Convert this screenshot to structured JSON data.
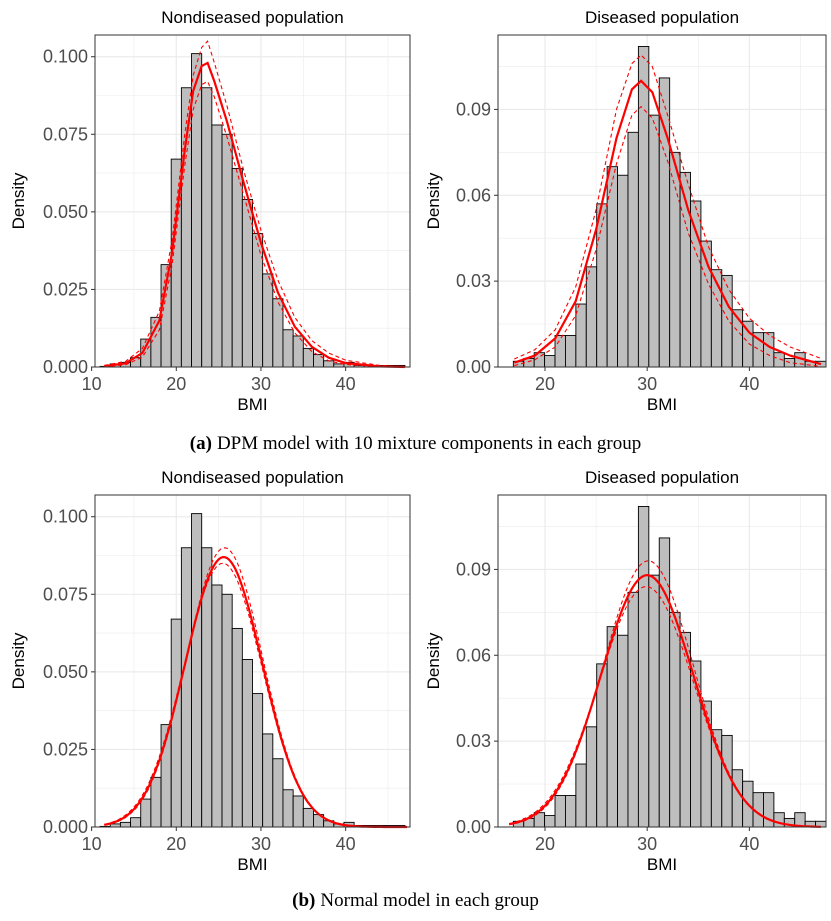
{
  "captions": {
    "a": {
      "tag": "(a)",
      "text": "DPM model with 10 mixture components in each group"
    },
    "b": {
      "tag": "(b)",
      "text": "Normal model in each group"
    }
  },
  "colors": {
    "bar_fill": "#bebebe",
    "bar_stroke": "#000000",
    "fit": "#ff0000",
    "grid": "#ebebeb"
  },
  "chart_data": [
    {
      "panel": "a-left",
      "type": "bar",
      "title": "Nondiseased population",
      "xlabel": "BMI",
      "ylabel": "Density",
      "xlim": [
        10.4,
        47.6
      ],
      "ylim": [
        0,
        0.107
      ],
      "xticks": [
        10,
        20,
        30,
        40
      ],
      "yticks": [
        "0.000",
        "0.025",
        "0.050",
        "0.075",
        "0.100"
      ],
      "grid": true,
      "histogram": {
        "start": 11,
        "binwidth": 1.2,
        "values": [
          0.0002,
          0.001,
          0.0015,
          0.003,
          0.009,
          0.016,
          0.033,
          0.067,
          0.09,
          0.101,
          0.09,
          0.078,
          0.075,
          0.064,
          0.054,
          0.043,
          0.03,
          0.022,
          0.012,
          0.01,
          0.006,
          0.004,
          0.002,
          0.001,
          0.0015,
          0.0005,
          0.0005,
          0.0005,
          0.0005,
          0.0005
        ]
      },
      "series": [
        {
          "name": "",
          "style": "solid",
          "points": [
            [
              11.5,
              0.0003
            ],
            [
              14,
              0.0012
            ],
            [
              16,
              0.0045
            ],
            [
              18,
              0.015
            ],
            [
              19.5,
              0.037
            ],
            [
              21,
              0.07
            ],
            [
              22,
              0.089
            ],
            [
              23,
              0.097
            ],
            [
              23.7,
              0.098
            ],
            [
              24.5,
              0.092
            ],
            [
              26,
              0.079
            ],
            [
              28,
              0.059
            ],
            [
              30,
              0.04
            ],
            [
              32,
              0.024
            ],
            [
              34,
              0.013
            ],
            [
              36,
              0.0065
            ],
            [
              38,
              0.003
            ],
            [
              40,
              0.0013
            ],
            [
              44,
              0.0002
            ],
            [
              47,
              0
            ]
          ]
        },
        {
          "name": "",
          "style": "dashed",
          "points": [
            [
              11.5,
              0.0005
            ],
            [
              14,
              0.0018
            ],
            [
              16,
              0.006
            ],
            [
              18,
              0.018
            ],
            [
              19.5,
              0.041
            ],
            [
              21,
              0.075
            ],
            [
              22,
              0.094
            ],
            [
              23,
              0.103
            ],
            [
              23.7,
              0.105
            ],
            [
              24.5,
              0.098
            ],
            [
              26,
              0.084
            ],
            [
              28,
              0.063
            ],
            [
              30,
              0.044
            ],
            [
              32,
              0.028
            ],
            [
              34,
              0.016
            ],
            [
              36,
              0.0085
            ],
            [
              38,
              0.0045
            ],
            [
              40,
              0.0022
            ],
            [
              44,
              0.0005
            ],
            [
              47,
              0.0001
            ]
          ]
        },
        {
          "name": "",
          "style": "dashed",
          "points": [
            [
              11.5,
              0.0001
            ],
            [
              14,
              0.0007
            ],
            [
              16,
              0.0032
            ],
            [
              18,
              0.012
            ],
            [
              19.5,
              0.033
            ],
            [
              21,
              0.065
            ],
            [
              22,
              0.083
            ],
            [
              23,
              0.091
            ],
            [
              23.7,
              0.092
            ],
            [
              24.5,
              0.087
            ],
            [
              26,
              0.074
            ],
            [
              28,
              0.055
            ],
            [
              30,
              0.036
            ],
            [
              32,
              0.021
            ],
            [
              34,
              0.011
            ],
            [
              36,
              0.005
            ],
            [
              38,
              0.002
            ],
            [
              40,
              0.0008
            ],
            [
              44,
              0.0001
            ],
            [
              47,
              0
            ]
          ]
        }
      ]
    },
    {
      "panel": "a-right",
      "type": "bar",
      "title": "Diseased population",
      "xlabel": "BMI",
      "ylabel": "Density",
      "xlim": [
        15.4,
        47.5
      ],
      "ylim": [
        0,
        0.116
      ],
      "xticks": [
        20,
        30,
        40
      ],
      "yticks": [
        "0.00",
        "0.03",
        "0.06",
        "0.09"
      ],
      "grid": true,
      "histogram": {
        "start": 16.9,
        "binwidth": 1.02,
        "values": [
          0.002,
          0.003,
          0.005,
          0.004,
          0.011,
          0.011,
          0.022,
          0.035,
          0.057,
          0.07,
          0.067,
          0.082,
          0.112,
          0.088,
          0.101,
          0.075,
          0.068,
          0.058,
          0.044,
          0.034,
          0.032,
          0.02,
          0.016,
          0.012,
          0.012,
          0.005,
          0.003,
          0.005,
          0.002,
          0.002
        ]
      },
      "series": [
        {
          "name": "",
          "style": "solid",
          "points": [
            [
              17,
              0.0015
            ],
            [
              19,
              0.004
            ],
            [
              21,
              0.01
            ],
            [
              23,
              0.023
            ],
            [
              25,
              0.048
            ],
            [
              27,
              0.08
            ],
            [
              28.5,
              0.097
            ],
            [
              29.4,
              0.1
            ],
            [
              30.5,
              0.096
            ],
            [
              32,
              0.08
            ],
            [
              34,
              0.055
            ],
            [
              36,
              0.035
            ],
            [
              38,
              0.021
            ],
            [
              40,
              0.012
            ],
            [
              42,
              0.007
            ],
            [
              44,
              0.004
            ],
            [
              47,
              0.001
            ]
          ]
        },
        {
          "name": "",
          "style": "dashed",
          "points": [
            [
              17,
              0.0028
            ],
            [
              19,
              0.006
            ],
            [
              21,
              0.013
            ],
            [
              23,
              0.028
            ],
            [
              25,
              0.055
            ],
            [
              27,
              0.09
            ],
            [
              28.5,
              0.106
            ],
            [
              29.4,
              0.109
            ],
            [
              30.5,
              0.105
            ],
            [
              32,
              0.088
            ],
            [
              34,
              0.064
            ],
            [
              36,
              0.042
            ],
            [
              38,
              0.027
            ],
            [
              40,
              0.017
            ],
            [
              42,
              0.011
            ],
            [
              44,
              0.007
            ],
            [
              47,
              0.003
            ]
          ]
        },
        {
          "name": "",
          "style": "dashed",
          "points": [
            [
              17,
              0.0005
            ],
            [
              19,
              0.0025
            ],
            [
              21,
              0.007
            ],
            [
              23,
              0.018
            ],
            [
              25,
              0.041
            ],
            [
              27,
              0.071
            ],
            [
              28.5,
              0.088
            ],
            [
              29.4,
              0.091
            ],
            [
              30.5,
              0.087
            ],
            [
              32,
              0.072
            ],
            [
              34,
              0.047
            ],
            [
              36,
              0.029
            ],
            [
              38,
              0.016
            ],
            [
              40,
              0.008
            ],
            [
              42,
              0.004
            ],
            [
              44,
              0.0015
            ],
            [
              47,
              0.0002
            ]
          ]
        }
      ]
    },
    {
      "panel": "b-left",
      "type": "bar",
      "title": "Nondiseased population",
      "xlabel": "BMI",
      "ylabel": "Density",
      "xlim": [
        10.4,
        47.6
      ],
      "ylim": [
        0,
        0.107
      ],
      "xticks": [
        10,
        20,
        30,
        40
      ],
      "yticks": [
        "0.000",
        "0.025",
        "0.050",
        "0.075",
        "0.100"
      ],
      "grid": true,
      "histogram": {
        "start": 11,
        "binwidth": 1.2,
        "values": [
          0.0002,
          0.001,
          0.0015,
          0.003,
          0.009,
          0.016,
          0.033,
          0.067,
          0.09,
          0.101,
          0.09,
          0.078,
          0.075,
          0.064,
          0.054,
          0.043,
          0.03,
          0.022,
          0.012,
          0.01,
          0.006,
          0.004,
          0.002,
          0.001,
          0.0015,
          0.0005,
          0.0005,
          0.0005,
          0.0005,
          0.0005
        ]
      },
      "series": [
        {
          "name": "",
          "style": "solid",
          "normal": {
            "mean": 25.6,
            "sd": 4.55,
            "peak": 0.087
          }
        },
        {
          "name": "",
          "style": "dashed",
          "normal": {
            "mean": 25.7,
            "sd": 4.5,
            "peak": 0.09
          }
        },
        {
          "name": "",
          "style": "dashed",
          "normal": {
            "mean": 25.5,
            "sd": 4.62,
            "peak": 0.085
          }
        }
      ]
    },
    {
      "panel": "b-right",
      "type": "bar",
      "title": "Diseased population",
      "xlabel": "BMI",
      "ylabel": "Density",
      "xlim": [
        15.4,
        47.5
      ],
      "ylim": [
        0,
        0.116
      ],
      "xticks": [
        20,
        30,
        40
      ],
      "yticks": [
        "0.00",
        "0.03",
        "0.06",
        "0.09"
      ],
      "grid": true,
      "histogram": {
        "start": 16.9,
        "binwidth": 1.02,
        "values": [
          0.002,
          0.003,
          0.005,
          0.004,
          0.011,
          0.011,
          0.022,
          0.035,
          0.057,
          0.07,
          0.067,
          0.082,
          0.112,
          0.088,
          0.101,
          0.075,
          0.068,
          0.058,
          0.044,
          0.034,
          0.032,
          0.02,
          0.016,
          0.012,
          0.012,
          0.005,
          0.003,
          0.005,
          0.002,
          0.002
        ]
      },
      "series": [
        {
          "name": "",
          "style": "solid",
          "normal": {
            "mean": 30.0,
            "sd": 4.5,
            "peak": 0.088
          }
        },
        {
          "name": "",
          "style": "dashed",
          "normal": {
            "mean": 30.1,
            "sd": 4.42,
            "peak": 0.093
          }
        },
        {
          "name": "",
          "style": "dashed",
          "normal": {
            "mean": 29.9,
            "sd": 4.6,
            "peak": 0.084
          }
        }
      ]
    }
  ]
}
